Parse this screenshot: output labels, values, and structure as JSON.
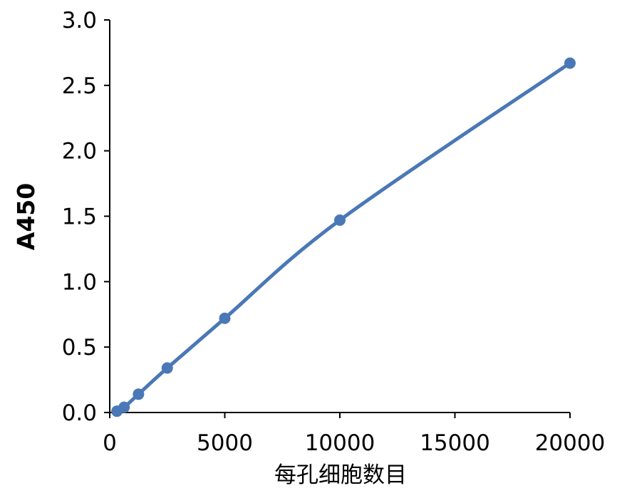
{
  "chart_data": {
    "type": "scatter",
    "title": "",
    "xlabel": "每孔细胞数目",
    "ylabel": "A450",
    "xlim": [
      0,
      20000
    ],
    "ylim": [
      0,
      3.0
    ],
    "x_ticks": [
      "0",
      "5000",
      "10000",
      "15000",
      "20000"
    ],
    "y_ticks": [
      "0.0",
      "0.5",
      "1.0",
      "1.5",
      "2.0",
      "2.5",
      "3.0"
    ],
    "grid": false,
    "legend": "none",
    "line_style": "smooth",
    "series": [
      {
        "color": "#4a78b6",
        "x": [
          312,
          625,
          1250,
          2500,
          5000,
          10000,
          20000
        ],
        "y": [
          0.01,
          0.04,
          0.14,
          0.34,
          0.72,
          1.47,
          2.67
        ]
      }
    ]
  }
}
